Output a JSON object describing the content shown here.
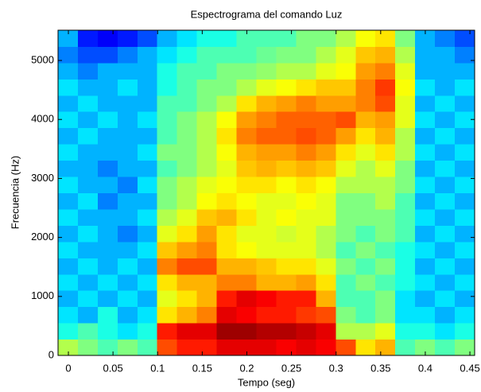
{
  "chart_data": {
    "type": "heatmap",
    "title": "Espectrograma del comando Luz",
    "x_label": "Tempo (seg)",
    "y_label": "Frecuencia (Hz)",
    "colormap": "jet",
    "xlim": [
      -0.0116,
      0.4553
    ],
    "ylim": [
      0,
      5512.5
    ],
    "xticks": [
      0,
      0.05,
      0.1,
      0.15,
      0.2,
      0.25,
      0.3,
      0.35,
      0.4,
      0.45
    ],
    "yticks": [
      0,
      1000,
      2000,
      3000,
      4000,
      5000
    ],
    "x": [
      -0.0005,
      0.0217,
      0.0439,
      0.0662,
      0.0884,
      0.1106,
      0.1329,
      0.1551,
      0.1773,
      0.1996,
      0.2218,
      0.244,
      0.2663,
      0.2885,
      0.3107,
      0.333,
      0.3552,
      0.3774,
      0.3996,
      0.4219,
      0.4441
    ],
    "y": [
      137.8,
      413.4,
      689.1,
      964.7,
      1240.3,
      1515.9,
      1791.6,
      2067.2,
      2342.8,
      2618.4,
      2894.1,
      3169.7,
      3445.3,
      3720.9,
      3996.6,
      4272.2,
      4547.8,
      4823.4,
      5099.1,
      5374.7
    ],
    "values": [
      [
        0.55,
        0.5,
        0.45,
        0.5,
        0.45,
        0.8,
        0.85,
        0.85,
        0.9,
        0.9,
        0.9,
        0.88,
        0.9,
        0.88,
        0.8,
        0.65,
        0.7,
        0.45,
        0.5,
        0.45,
        0.5
      ],
      [
        0.4,
        0.45,
        0.4,
        0.35,
        0.4,
        0.85,
        0.9,
        0.9,
        0.97,
        0.97,
        0.95,
        0.95,
        0.93,
        0.9,
        0.55,
        0.55,
        0.6,
        0.4,
        0.4,
        0.35,
        0.4
      ],
      [
        0.35,
        0.3,
        0.4,
        0.3,
        0.35,
        0.65,
        0.7,
        0.75,
        0.9,
        0.88,
        0.85,
        0.85,
        0.82,
        0.8,
        0.5,
        0.45,
        0.5,
        0.35,
        0.35,
        0.3,
        0.35
      ],
      [
        0.3,
        0.35,
        0.3,
        0.35,
        0.3,
        0.6,
        0.65,
        0.7,
        0.85,
        0.9,
        0.88,
        0.85,
        0.85,
        0.7,
        0.45,
        0.45,
        0.5,
        0.35,
        0.3,
        0.35,
        0.3
      ],
      [
        0.35,
        0.3,
        0.35,
        0.3,
        0.35,
        0.65,
        0.7,
        0.7,
        0.75,
        0.75,
        0.7,
        0.7,
        0.72,
        0.65,
        0.45,
        0.5,
        0.45,
        0.4,
        0.35,
        0.3,
        0.35
      ],
      [
        0.3,
        0.35,
        0.3,
        0.35,
        0.3,
        0.75,
        0.8,
        0.8,
        0.7,
        0.7,
        0.68,
        0.65,
        0.65,
        0.6,
        0.5,
        0.45,
        0.5,
        0.4,
        0.3,
        0.35,
        0.3
      ],
      [
        0.35,
        0.3,
        0.3,
        0.3,
        0.35,
        0.68,
        0.72,
        0.75,
        0.65,
        0.62,
        0.6,
        0.6,
        0.6,
        0.55,
        0.45,
        0.5,
        0.45,
        0.4,
        0.35,
        0.3,
        0.35
      ],
      [
        0.3,
        0.35,
        0.3,
        0.25,
        0.3,
        0.6,
        0.65,
        0.72,
        0.65,
        0.6,
        0.6,
        0.58,
        0.6,
        0.55,
        0.5,
        0.45,
        0.5,
        0.45,
        0.3,
        0.35,
        0.3
      ],
      [
        0.35,
        0.3,
        0.3,
        0.3,
        0.35,
        0.55,
        0.6,
        0.68,
        0.7,
        0.65,
        0.6,
        0.62,
        0.6,
        0.6,
        0.5,
        0.5,
        0.5,
        0.45,
        0.35,
        0.3,
        0.35
      ],
      [
        0.3,
        0.35,
        0.25,
        0.3,
        0.3,
        0.5,
        0.55,
        0.62,
        0.65,
        0.62,
        0.6,
        0.6,
        0.62,
        0.6,
        0.5,
        0.5,
        0.55,
        0.45,
        0.3,
        0.35,
        0.3
      ],
      [
        0.35,
        0.3,
        0.3,
        0.25,
        0.35,
        0.5,
        0.55,
        0.6,
        0.62,
        0.65,
        0.65,
        0.62,
        0.65,
        0.62,
        0.55,
        0.55,
        0.55,
        0.5,
        0.35,
        0.3,
        0.35
      ],
      [
        0.3,
        0.3,
        0.25,
        0.3,
        0.3,
        0.45,
        0.5,
        0.55,
        0.6,
        0.68,
        0.7,
        0.68,
        0.7,
        0.68,
        0.6,
        0.55,
        0.6,
        0.5,
        0.3,
        0.35,
        0.3
      ],
      [
        0.35,
        0.3,
        0.3,
        0.3,
        0.35,
        0.5,
        0.5,
        0.55,
        0.62,
        0.7,
        0.72,
        0.72,
        0.75,
        0.72,
        0.65,
        0.6,
        0.65,
        0.55,
        0.35,
        0.3,
        0.35
      ],
      [
        0.3,
        0.35,
        0.3,
        0.3,
        0.3,
        0.45,
        0.5,
        0.55,
        0.65,
        0.75,
        0.78,
        0.78,
        0.8,
        0.78,
        0.72,
        0.65,
        0.7,
        0.55,
        0.3,
        0.35,
        0.3
      ],
      [
        0.35,
        0.3,
        0.35,
        0.3,
        0.35,
        0.45,
        0.5,
        0.55,
        0.62,
        0.72,
        0.75,
        0.78,
        0.78,
        0.78,
        0.8,
        0.7,
        0.72,
        0.6,
        0.35,
        0.3,
        0.35
      ],
      [
        0.3,
        0.35,
        0.3,
        0.3,
        0.3,
        0.45,
        0.45,
        0.5,
        0.55,
        0.65,
        0.7,
        0.72,
        0.75,
        0.72,
        0.72,
        0.75,
        0.8,
        0.6,
        0.3,
        0.35,
        0.3
      ],
      [
        0.35,
        0.3,
        0.3,
        0.35,
        0.3,
        0.4,
        0.45,
        0.5,
        0.5,
        0.55,
        0.6,
        0.62,
        0.65,
        0.68,
        0.68,
        0.75,
        0.82,
        0.62,
        0.35,
        0.3,
        0.35
      ],
      [
        0.3,
        0.25,
        0.3,
        0.3,
        0.3,
        0.4,
        0.45,
        0.45,
        0.5,
        0.5,
        0.52,
        0.55,
        0.55,
        0.6,
        0.62,
        0.72,
        0.75,
        0.6,
        0.3,
        0.3,
        0.3
      ],
      [
        0.25,
        0.2,
        0.2,
        0.25,
        0.3,
        0.35,
        0.4,
        0.45,
        0.45,
        0.45,
        0.48,
        0.5,
        0.5,
        0.55,
        0.6,
        0.68,
        0.7,
        0.55,
        0.3,
        0.3,
        0.25
      ],
      [
        0.3,
        0.15,
        0.12,
        0.15,
        0.2,
        0.3,
        0.35,
        0.4,
        0.4,
        0.45,
        0.45,
        0.45,
        0.5,
        0.5,
        0.55,
        0.62,
        0.65,
        0.5,
        0.3,
        0.25,
        0.2
      ]
    ]
  }
}
